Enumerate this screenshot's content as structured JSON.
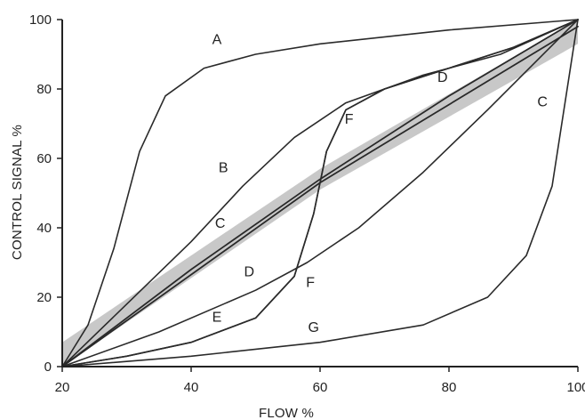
{
  "chart_data": {
    "type": "line",
    "title": "",
    "xlabel": "FLOW %",
    "ylabel": "CONTROL SIGNAL %",
    "xlim": [
      20,
      100
    ],
    "ylim": [
      0,
      100
    ],
    "xticks": [
      "20",
      "40",
      "60",
      "80",
      "100"
    ],
    "yticks": [
      "0",
      "20",
      "40",
      "60",
      "80",
      "100"
    ],
    "grid": false,
    "legend": "none",
    "band": {
      "lower": [
        [
          20,
          0
        ],
        [
          60,
          51
        ],
        [
          100,
          93
        ]
      ],
      "upper": [
        [
          20,
          7
        ],
        [
          60,
          57
        ],
        [
          100,
          100
        ]
      ],
      "color": "#c8c8c8"
    },
    "series": [
      {
        "name": "A",
        "label_at": [
          44,
          93
        ],
        "points": [
          [
            20,
            0
          ],
          [
            24,
            12
          ],
          [
            28,
            34
          ],
          [
            32,
            62
          ],
          [
            36,
            78
          ],
          [
            42,
            86
          ],
          [
            50,
            90
          ],
          [
            60,
            93
          ],
          [
            80,
            97
          ],
          [
            100,
            100
          ]
        ]
      },
      {
        "name": "B",
        "label_at": [
          45,
          56
        ],
        "points": [
          [
            20,
            0
          ],
          [
            30,
            18
          ],
          [
            40,
            36
          ],
          [
            48,
            52
          ],
          [
            56,
            66
          ],
          [
            64,
            76
          ],
          [
            76,
            84
          ],
          [
            88,
            90
          ],
          [
            100,
            100
          ]
        ]
      },
      {
        "name": "C",
        "label_at": [
          44.5,
          40
        ],
        "points": [
          [
            20,
            0
          ],
          [
            60,
            53
          ],
          [
            100,
            98
          ]
        ]
      },
      {
        "name": "C",
        "label_at": [
          94.5,
          75
        ],
        "points": [
          [
            20,
            0
          ],
          [
            60,
            53
          ],
          [
            100,
            98
          ]
        ]
      },
      {
        "name": "D",
        "label_at": [
          49,
          26
        ],
        "points": [
          [
            20,
            0
          ],
          [
            40,
            28
          ],
          [
            60,
            54
          ],
          [
            80,
            78
          ],
          [
            100,
            100
          ]
        ]
      },
      {
        "name": "D",
        "label_at": [
          79,
          82
        ],
        "points": [
          [
            20,
            0
          ],
          [
            40,
            28
          ],
          [
            60,
            54
          ],
          [
            80,
            78
          ],
          [
            100,
            100
          ]
        ]
      },
      {
        "name": "E",
        "label_at": [
          44,
          13
        ],
        "points": [
          [
            20,
            0
          ],
          [
            35,
            10
          ],
          [
            50,
            22
          ],
          [
            58,
            30
          ],
          [
            66,
            40
          ],
          [
            76,
            56
          ],
          [
            86,
            74
          ],
          [
            100,
            100
          ]
        ]
      },
      {
        "name": "F",
        "label_at": [
          64.5,
          70
        ],
        "points": [
          [
            20,
            0
          ],
          [
            30,
            3
          ],
          [
            40,
            7
          ],
          [
            50,
            14
          ],
          [
            56,
            26
          ],
          [
            59,
            44
          ],
          [
            61,
            62
          ],
          [
            64,
            74
          ],
          [
            70,
            80
          ],
          [
            80,
            86
          ],
          [
            90,
            92
          ],
          [
            100,
            100
          ]
        ]
      },
      {
        "name": "F",
        "label_at": [
          58.5,
          23
        ],
        "points": [
          [
            20,
            0
          ],
          [
            30,
            3
          ],
          [
            40,
            7
          ],
          [
            50,
            14
          ],
          [
            56,
            26
          ],
          [
            59,
            44
          ],
          [
            61,
            62
          ],
          [
            64,
            74
          ],
          [
            70,
            80
          ],
          [
            80,
            86
          ],
          [
            90,
            92
          ],
          [
            100,
            100
          ]
        ]
      },
      {
        "name": "G",
        "label_at": [
          59,
          10
        ],
        "points": [
          [
            20,
            0
          ],
          [
            40,
            3
          ],
          [
            60,
            7
          ],
          [
            76,
            12
          ],
          [
            86,
            20
          ],
          [
            92,
            32
          ],
          [
            96,
            52
          ],
          [
            98,
            76
          ],
          [
            100,
            100
          ]
        ]
      }
    ]
  }
}
